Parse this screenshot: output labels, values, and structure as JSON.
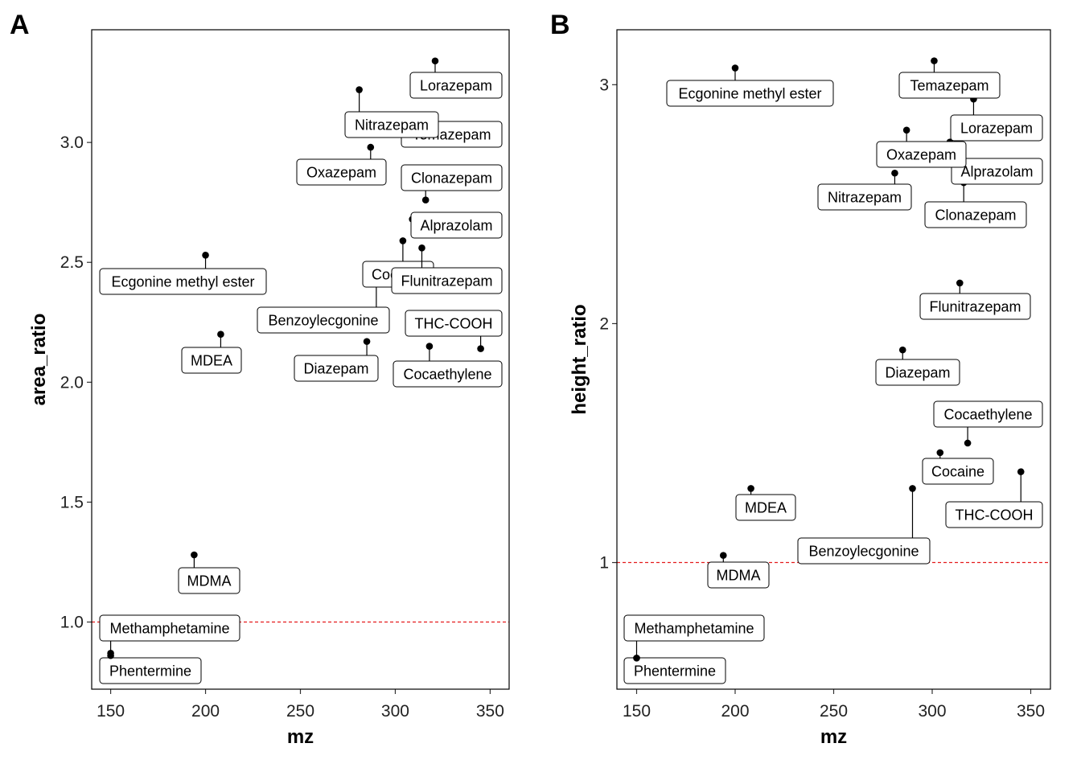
{
  "colors": {
    "reference_line": "#e41a1c",
    "points": "#000000",
    "label_fill": "#ffffff"
  },
  "chart_data": [
    {
      "type": "scatter",
      "panel": "A",
      "xlabel": "mz",
      "ylabel": "area_ratio",
      "xlim": [
        140,
        360
      ],
      "ylim": [
        0.72,
        3.47
      ],
      "x_ticks": [
        150,
        200,
        250,
        300,
        350
      ],
      "y_ticks": [
        1.0,
        1.5,
        2.0,
        2.5,
        3.0
      ],
      "y_tick_labels": [
        "1.0",
        "1.5",
        "2.0",
        "2.5",
        "3.0"
      ],
      "reference_line": {
        "y": 1.0,
        "style": "dashed",
        "color": "#e41a1c"
      },
      "points": [
        {
          "label": "Phentermine",
          "x": 150,
          "y": 0.87
        },
        {
          "label": "Methamphetamine",
          "x": 150,
          "y": 0.86
        },
        {
          "label": "MDMA",
          "x": 194,
          "y": 1.28
        },
        {
          "label": "MDEA",
          "x": 208,
          "y": 2.2
        },
        {
          "label": "Ecgonine methyl ester",
          "x": 200,
          "y": 2.53
        },
        {
          "label": "Benzoylecgonine",
          "x": 290,
          "y": 2.46
        },
        {
          "label": "Cocaine",
          "x": 304,
          "y": 2.59
        },
        {
          "label": "Diazepam",
          "x": 285,
          "y": 2.17
        },
        {
          "label": "Cocaethylene",
          "x": 318,
          "y": 2.15
        },
        {
          "label": "THC-COOH",
          "x": 345,
          "y": 2.14
        },
        {
          "label": "Flunitrazepam",
          "x": 314,
          "y": 2.56
        },
        {
          "label": "Alprazolam",
          "x": 309,
          "y": 2.68
        },
        {
          "label": "Clonazepam",
          "x": 316,
          "y": 2.76
        },
        {
          "label": "Oxazepam",
          "x": 287,
          "y": 2.98
        },
        {
          "label": "Temazepam",
          "x": 301,
          "y": 3.06
        },
        {
          "label": "Nitrazepam",
          "x": 281,
          "y": 3.22
        },
        {
          "label": "Lorazepam",
          "x": 321,
          "y": 3.34
        }
      ]
    },
    {
      "type": "scatter",
      "panel": "B",
      "xlabel": "mz",
      "ylabel": "height_ratio",
      "xlim": [
        140,
        360
      ],
      "ylim": [
        0.47,
        3.23
      ],
      "x_ticks": [
        150,
        200,
        250,
        300,
        350
      ],
      "y_ticks": [
        1,
        2,
        3
      ],
      "y_tick_labels": [
        "1",
        "2",
        "3"
      ],
      "reference_line": {
        "y": 1.0,
        "style": "dashed",
        "color": "#e41a1c"
      },
      "points": [
        {
          "label": "Phentermine",
          "x": 150,
          "y": 0.6
        },
        {
          "label": "Methamphetamine",
          "x": 150,
          "y": 0.6
        },
        {
          "label": "MDMA",
          "x": 194,
          "y": 1.03
        },
        {
          "label": "MDEA",
          "x": 208,
          "y": 1.31
        },
        {
          "label": "Benzoylecgonine",
          "x": 290,
          "y": 1.31
        },
        {
          "label": "THC-COOH",
          "x": 345,
          "y": 1.38
        },
        {
          "label": "Cocaine",
          "x": 304,
          "y": 1.46
        },
        {
          "label": "Cocaethylene",
          "x": 318,
          "y": 1.5
        },
        {
          "label": "Diazepam",
          "x": 285,
          "y": 1.89
        },
        {
          "label": "Flunitrazepam",
          "x": 314,
          "y": 2.17
        },
        {
          "label": "Nitrazepam",
          "x": 281,
          "y": 2.63
        },
        {
          "label": "Clonazepam",
          "x": 316,
          "y": 2.59
        },
        {
          "label": "Alprazolam",
          "x": 309,
          "y": 2.76
        },
        {
          "label": "Oxazepam",
          "x": 287,
          "y": 2.81
        },
        {
          "label": "Lorazepam",
          "x": 321,
          "y": 2.94
        },
        {
          "label": "Ecgonine methyl ester",
          "x": 200,
          "y": 3.07
        },
        {
          "label": "Temazepam",
          "x": 301,
          "y": 3.1
        }
      ]
    }
  ]
}
